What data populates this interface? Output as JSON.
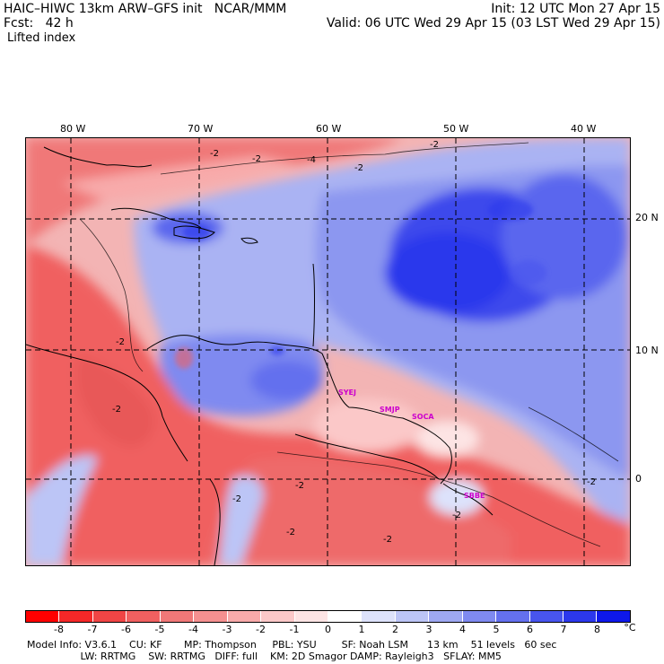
{
  "header": {
    "model": "HAIC–HIWC 13km ARW–GFS init   NCAR/MMM",
    "fcst": "Fcst:   42 h",
    "field": "Lifted index",
    "init": "Init: 12 UTC Mon 27 Apr 15",
    "valid": "Valid: 06 UTC Wed 29 Apr 15 (03 LST Wed 29 Apr 15)"
  },
  "map": {
    "lon_labels": [
      "80 W",
      "70 W",
      "60 W",
      "50 W",
      "40 W"
    ],
    "lat_labels": [
      "20 N",
      "10 N",
      "0"
    ],
    "contour_labels": [
      "-2",
      "-2",
      "-4",
      "-2",
      "-2",
      "-2",
      "-2",
      "-2",
      "-2",
      "-2",
      "-2",
      "-2",
      "-2"
    ],
    "stations": [
      "SYEJ",
      "SMJP",
      "SOCA",
      "SBBE"
    ],
    "colors": {
      "negative": "#f06060",
      "positive": "#3344ee",
      "neutral": "#ffffff"
    }
  },
  "colorbar": {
    "ticks": [
      "-8",
      "-7",
      "-6",
      "-5",
      "-4",
      "-3",
      "-2",
      "-1",
      "0",
      "1",
      "2",
      "3",
      "4",
      "5",
      "6",
      "7",
      "8"
    ],
    "unit": "°C",
    "colors": [
      "#ff0000",
      "#f52828",
      "#f04545",
      "#f06060",
      "#f07878",
      "#f59090",
      "#f8aaaa",
      "#fbc8c8",
      "#fde4e4",
      "#ffffff",
      "#dde2fb",
      "#bcc5f6",
      "#9ea8f2",
      "#7f8af0",
      "#6470ee",
      "#4855ee",
      "#2c38ec",
      "#0e18ea"
    ]
  },
  "info": {
    "line1": "Model Info: V3.6.1    CU: KF       MP: Thompson     PBL: YSU        SF: Noah LSM      13 km    51 levels   60 sec",
    "line2": "                 LW: RRTMG    SW: RRTMG   DIFF: full    KM: 2D Smagor DAMP: Rayleigh3   SFLAY: MM5"
  }
}
